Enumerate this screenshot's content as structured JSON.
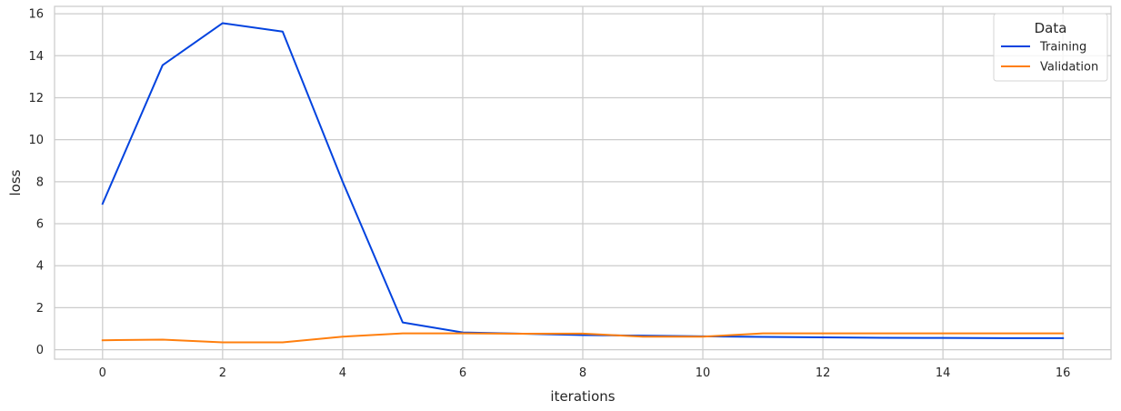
{
  "chart_data": {
    "type": "line",
    "xlabel": "iterations",
    "ylabel": "loss",
    "xlim": [
      -0.8,
      16.8
    ],
    "ylim": [
      -0.45,
      16.35
    ],
    "xticks": [
      0,
      2,
      4,
      6,
      8,
      10,
      12,
      14,
      16
    ],
    "yticks": [
      0,
      2,
      4,
      6,
      8,
      10,
      12,
      14,
      16
    ],
    "grid": true,
    "legend": {
      "title": "Data",
      "placement": "top-right"
    },
    "series": [
      {
        "name": "Training",
        "color": "#0343df",
        "x": [
          0,
          1,
          2,
          3,
          4,
          5,
          6,
          7,
          8,
          9,
          10,
          11,
          12,
          13,
          14,
          15,
          16
        ],
        "values": [
          6.95,
          13.55,
          15.55,
          15.15,
          8.0,
          1.3,
          0.82,
          0.76,
          0.7,
          0.67,
          0.64,
          0.61,
          0.59,
          0.57,
          0.56,
          0.55,
          0.55
        ]
      },
      {
        "name": "Validation",
        "color": "#ff7f0e",
        "x": [
          0,
          1,
          2,
          3,
          4,
          5,
          6,
          7,
          8,
          9,
          10,
          11,
          12,
          13,
          14,
          15,
          16
        ],
        "values": [
          0.45,
          0.48,
          0.35,
          0.35,
          0.62,
          0.78,
          0.78,
          0.76,
          0.77,
          0.62,
          0.62,
          0.78,
          0.78,
          0.78,
          0.78,
          0.78,
          0.78
        ]
      }
    ]
  }
}
